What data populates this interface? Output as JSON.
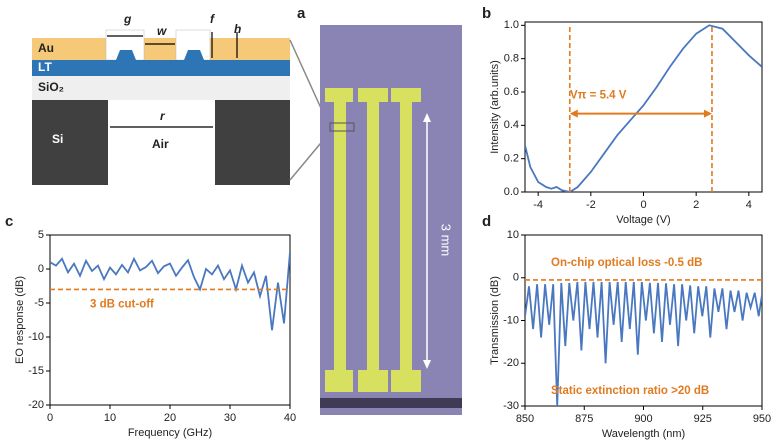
{
  "panel_labels": [
    "a",
    "b",
    "c",
    "d"
  ],
  "cross_section": {
    "dimension_labels": [
      "g",
      "w",
      "f",
      "h",
      "r"
    ],
    "layer_labels": [
      "Au",
      "LT",
      "SiO₂",
      "Si",
      "Air"
    ]
  },
  "micrograph": {
    "scale_label": "3 mm"
  },
  "chart_data": [
    {
      "type": "line",
      "x_label": "Voltage (V)",
      "y_label": "Intensity (arb.units)",
      "color": "#4a78c0",
      "x": [
        -4.5,
        -4.3,
        -4.0,
        -3.7,
        -3.5,
        -3.3,
        -3.1,
        -2.8,
        -2.5,
        -2.0,
        -1.5,
        -1.0,
        -0.5,
        0,
        0.5,
        1.0,
        1.5,
        2.0,
        2.5,
        3.0,
        3.5,
        4.0,
        4.5
      ],
      "values": [
        0.28,
        0.15,
        0.06,
        0.03,
        0.02,
        0.03,
        0.01,
        0.0,
        0.03,
        0.12,
        0.23,
        0.34,
        0.43,
        0.52,
        0.63,
        0.75,
        0.86,
        0.95,
        1.0,
        0.98,
        0.9,
        0.82,
        0.75
      ],
      "xlim": [
        -4.5,
        4.5
      ],
      "xticks": [
        -4,
        -2,
        0,
        2,
        4
      ],
      "ylim": [
        0,
        1.02
      ],
      "yticks": [
        {
          "value": 0,
          "label": "0.0"
        },
        0.2,
        0.4,
        0.6,
        0.8,
        {
          "value": 1,
          "label": "1.0"
        }
      ],
      "reference_x": [
        -2.8,
        2.6
      ],
      "annotations": [
        "Vπ = 5.4 V"
      ]
    },
    {
      "type": "line",
      "x_label": "Frequency (GHz)",
      "y_label": "EO response (dB)",
      "color": "#4a78c0",
      "x": [
        0,
        1,
        2,
        3,
        4,
        5,
        6,
        7,
        8,
        9,
        10,
        11,
        12,
        13,
        14,
        15,
        16,
        17,
        18,
        19,
        20,
        21,
        22,
        23,
        24,
        25,
        26,
        27,
        28,
        29,
        30,
        31,
        32,
        33,
        34,
        35,
        36,
        37,
        38,
        39,
        40
      ],
      "values": [
        1,
        0.5,
        1.5,
        -0.5,
        0.8,
        -1,
        1.2,
        -0.3,
        0.5,
        -1.5,
        0.2,
        -0.8,
        0.6,
        -0.5,
        1.5,
        -0.2,
        0.3,
        1.2,
        -0.6,
        0.4,
        0.8,
        -1,
        0.2,
        1.3,
        -1.2,
        -3,
        0,
        -0.8,
        0.5,
        -1.5,
        -0.2,
        -3,
        0.5,
        -2,
        -0.5,
        -4,
        -1,
        -9,
        -2,
        -8,
        2.5
      ],
      "xlim": [
        0,
        40
      ],
      "xticks": [
        0,
        10,
        20,
        30,
        40
      ],
      "ylim": [
        -20,
        5
      ],
      "yticks": [
        -20,
        -15,
        -10,
        -5,
        0,
        5
      ],
      "reference_y": -3,
      "annotations": [
        "3 dB cut-off"
      ]
    },
    {
      "type": "line",
      "x_label": "Wavelength (nm)",
      "y_label": "Transmission (dB)",
      "color": "#4a78c0",
      "x": [
        850.0,
        851.7,
        853.4,
        855.1,
        856.8,
        858.5,
        860.2,
        861.9,
        863.6,
        865.3,
        867.0,
        868.7,
        870.4,
        872.1,
        873.8,
        875.5,
        877.2,
        878.9,
        880.6,
        882.3,
        884.0,
        885.7,
        887.4,
        889.1,
        890.8,
        892.5,
        894.2,
        895.9,
        897.6,
        899.3,
        901.0,
        902.7,
        904.4,
        906.1,
        907.8,
        909.5,
        911.2,
        912.9,
        914.6,
        916.3,
        918.0,
        919.7,
        921.4,
        923.1,
        924.8,
        926.5,
        928.2,
        929.9,
        931.6,
        933.3,
        935.0,
        936.7,
        938.4,
        940.1,
        941.8,
        943.5,
        945.2,
        946.9,
        948.6,
        950.0
      ],
      "values": [
        -9,
        -2,
        -12,
        -1.5,
        -14,
        -1.5,
        -11,
        -1.5,
        -30,
        -1.2,
        -16,
        -1.2,
        -10,
        -1,
        -17,
        -1,
        -12,
        -1,
        -14,
        -1,
        -20,
        -1,
        -11,
        -1,
        -15,
        -1,
        -12,
        -1,
        -18,
        -1,
        -10,
        -1.2,
        -13,
        -1.2,
        -15,
        -1.3,
        -11,
        -1.5,
        -16,
        -1.5,
        -10,
        -1.8,
        -13,
        -2,
        -9,
        -2,
        -14,
        -2.5,
        -8,
        -2.5,
        -12,
        -3,
        -8,
        -3,
        -10,
        -3.5,
        -7,
        -3.5,
        -9,
        -4
      ],
      "xlim": [
        850,
        950
      ],
      "xticks": [
        850,
        875,
        900,
        925,
        950
      ],
      "ylim": [
        -30,
        10
      ],
      "yticks": [
        -30,
        -20,
        -10,
        0,
        10
      ],
      "reference_y": -0.5,
      "annotations": [
        "On-chip optical loss -0.5 dB",
        "Static extinction ratio >20 dB"
      ]
    }
  ]
}
